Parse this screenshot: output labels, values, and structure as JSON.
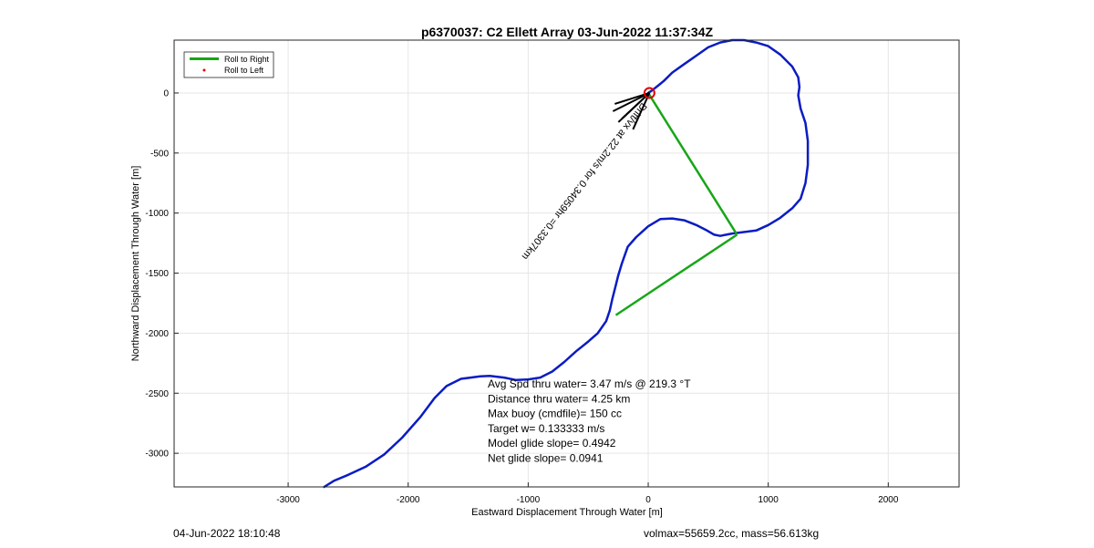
{
  "chart_data": {
    "type": "line",
    "title": "p6370037: C2 Ellett Array 03-Jun-2022 11:37:34Z",
    "xlabel": "Eastward Displacement Through Water [m]",
    "ylabel": "Northward Displacement Through Water [m]",
    "xlim": [
      -3950,
      2590
    ],
    "ylim": [
      -3280,
      440
    ],
    "xticks": [
      -3000,
      -2000,
      -1000,
      0,
      1000,
      2000
    ],
    "yticks": [
      -3000,
      -2500,
      -2000,
      -1500,
      -1000,
      -500,
      0
    ],
    "grid": true,
    "legend": {
      "position": "top-left",
      "entries": [
        {
          "label": "Roll to Right",
          "color": "#18a618",
          "kind": "line"
        },
        {
          "label": "Roll to Left",
          "color": "#e00000",
          "kind": "dot"
        }
      ]
    },
    "series": [
      {
        "kind": "track",
        "color": "#0b1cc2",
        "x": [
          -2700,
          -2620,
          -2500,
          -2350,
          -2200,
          -2050,
          -1900,
          -1780,
          -1680,
          -1560,
          -1480,
          -1400,
          -1320,
          -1200,
          -1100,
          -1000,
          -900,
          -800,
          -700,
          -600,
          -500,
          -420,
          -350,
          -320,
          -300,
          -270,
          -250,
          -220,
          -170,
          -100,
          0,
          100,
          200,
          300,
          400,
          480,
          550,
          600,
          650,
          700,
          900,
          1000,
          1100,
          1200,
          1270,
          1310,
          1330,
          1330,
          1310,
          1270,
          1250,
          1260,
          1250,
          1200,
          1100,
          1000,
          900,
          800,
          700,
          600,
          500,
          400,
          300,
          200,
          130,
          80,
          30,
          0
        ],
        "y": [
          -3280,
          -3230,
          -3180,
          -3110,
          -3010,
          -2870,
          -2700,
          -2540,
          -2440,
          -2380,
          -2370,
          -2360,
          -2355,
          -2370,
          -2390,
          -2385,
          -2370,
          -2320,
          -2240,
          -2150,
          -2070,
          -2000,
          -1900,
          -1810,
          -1720,
          -1600,
          -1520,
          -1420,
          -1280,
          -1200,
          -1110,
          -1050,
          -1045,
          -1060,
          -1100,
          -1140,
          -1180,
          -1190,
          -1180,
          -1170,
          -1145,
          -1100,
          -1040,
          -960,
          -880,
          -750,
          -600,
          -400,
          -250,
          -130,
          -20,
          50,
          130,
          220,
          320,
          390,
          420,
          440,
          440,
          420,
          380,
          310,
          240,
          170,
          100,
          60,
          20,
          0
        ]
      }
    ],
    "glide_segments": [
      {
        "x": [
          0,
          740
        ],
        "y": [
          0,
          -1180
        ]
      },
      {
        "x": [
          740,
          -270
        ],
        "y": [
          -1180,
          -1850
        ]
      }
    ],
    "marker": {
      "x": 10,
      "y": 0,
      "color": "#e00000"
    },
    "rotated_annotation": "Drift/vx at 22.2m/s for 0.34059hr =0.3307km",
    "stats": [
      "Avg Spd thru water=  3.47 m/s @ 219.3 °T",
      "Distance thru water=  4.25 km",
      "Max buoy (cmdfile)= 150 cc",
      "Target w= 0.133333 m/s",
      "Model glide slope= 0.4942",
      "Net glide slope= 0.0941"
    ]
  },
  "footer": {
    "date": "04-Jun-2022 18:10:48",
    "summary": "volmax=55659.2cc, mass=56.613kg"
  }
}
